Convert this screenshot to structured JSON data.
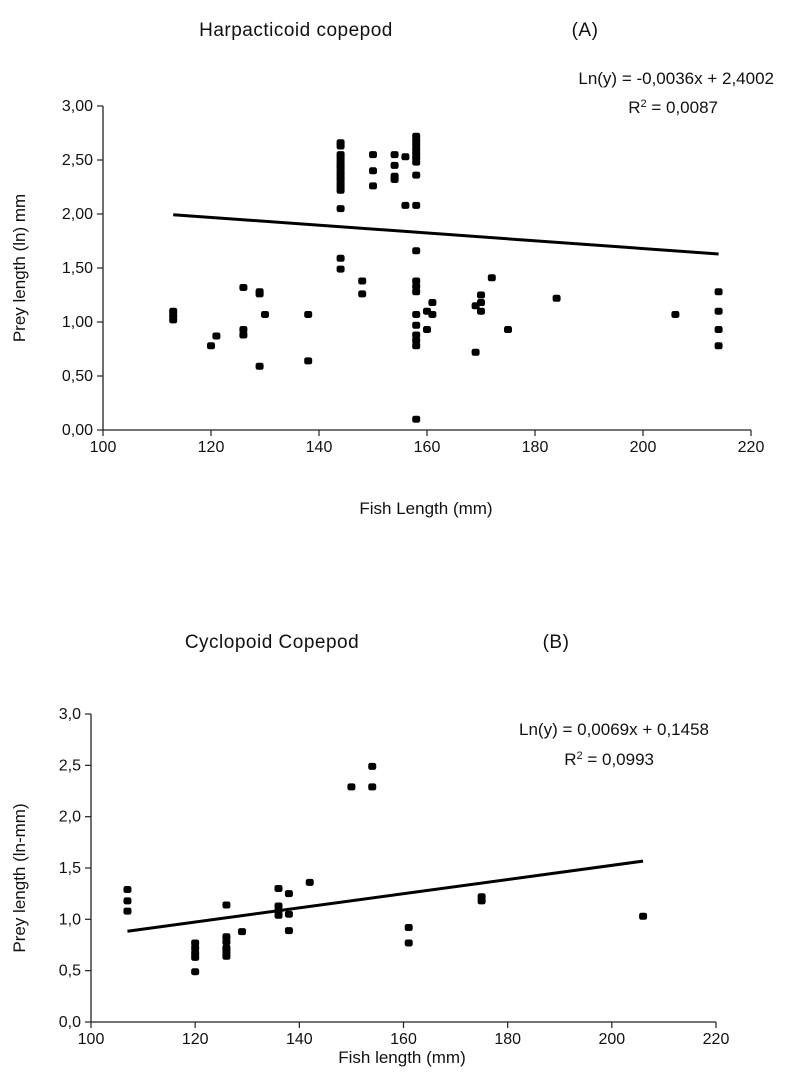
{
  "chart_data": [
    {
      "id": "A",
      "type": "scatter",
      "title": "Harpacticoid copepod",
      "panel_label": "(A)",
      "xlabel": "Fish Length (mm)",
      "ylabel": "Prey length (ln) mm",
      "xlim": [
        100,
        220
      ],
      "ylim": [
        0,
        3
      ],
      "x_ticks": [
        100,
        120,
        140,
        160,
        180,
        200,
        220
      ],
      "x_tick_labels": [
        "100",
        "120",
        "140",
        "160",
        "180",
        "200",
        "220"
      ],
      "y_ticks": [
        0,
        0.5,
        1,
        1.5,
        2,
        2.5,
        3
      ],
      "y_tick_labels": [
        "0,00",
        "0,50",
        "1,00",
        "1,50",
        "2,00",
        "2,50",
        "3,00"
      ],
      "equation": "Ln(y) = -0,0036x + 2,4002",
      "r2_prefix": "R",
      "r2_value": " = 0,0087",
      "trendline": {
        "slope": -0.0036,
        "intercept": 2.4002,
        "x_range": [
          113,
          214
        ]
      },
      "grid": false,
      "points": [
        [
          113,
          1.1
        ],
        [
          113,
          1.06
        ],
        [
          113,
          1.02
        ],
        [
          120,
          0.78
        ],
        [
          121,
          0.87
        ],
        [
          126,
          1.32
        ],
        [
          126,
          0.93
        ],
        [
          126,
          0.88
        ],
        [
          129,
          1.28
        ],
        [
          129,
          1.26
        ],
        [
          129,
          0.59
        ],
        [
          130,
          1.07
        ],
        [
          138,
          1.07
        ],
        [
          138,
          0.64
        ],
        [
          144,
          2.66
        ],
        [
          144,
          2.63
        ],
        [
          144,
          2.55
        ],
        [
          144,
          2.52
        ],
        [
          144,
          2.48
        ],
        [
          144,
          2.45
        ],
        [
          144,
          2.42
        ],
        [
          144,
          2.38
        ],
        [
          144,
          2.35
        ],
        [
          144,
          2.32
        ],
        [
          144,
          2.28
        ],
        [
          144,
          2.25
        ],
        [
          144,
          2.22
        ],
        [
          144,
          2.05
        ],
        [
          144,
          1.59
        ],
        [
          144,
          1.49
        ],
        [
          148,
          1.38
        ],
        [
          148,
          1.26
        ],
        [
          150,
          2.55
        ],
        [
          150,
          2.4
        ],
        [
          150,
          2.26
        ],
        [
          154,
          2.55
        ],
        [
          154,
          2.45
        ],
        [
          154,
          2.35
        ],
        [
          154,
          2.32
        ],
        [
          156,
          2.53
        ],
        [
          156,
          2.08
        ],
        [
          158,
          2.72
        ],
        [
          158,
          2.68
        ],
        [
          158,
          2.64
        ],
        [
          158,
          2.6
        ],
        [
          158,
          2.56
        ],
        [
          158,
          2.52
        ],
        [
          158,
          2.48
        ],
        [
          158,
          2.36
        ],
        [
          158,
          2.08
        ],
        [
          158,
          1.66
        ],
        [
          158,
          1.38
        ],
        [
          158,
          1.33
        ],
        [
          158,
          1.28
        ],
        [
          158,
          1.07
        ],
        [
          158,
          0.97
        ],
        [
          158,
          0.88
        ],
        [
          158,
          0.83
        ],
        [
          158,
          0.78
        ],
        [
          158,
          0.1
        ],
        [
          160,
          1.1
        ],
        [
          160,
          0.93
        ],
        [
          161,
          1.18
        ],
        [
          161,
          1.07
        ],
        [
          169,
          1.15
        ],
        [
          169,
          0.72
        ],
        [
          170,
          1.25
        ],
        [
          170,
          1.18
        ],
        [
          170,
          1.1
        ],
        [
          172,
          1.41
        ],
        [
          175,
          0.93
        ],
        [
          184,
          1.22
        ],
        [
          206,
          1.07
        ],
        [
          214,
          1.28
        ],
        [
          214,
          1.1
        ],
        [
          214,
          0.93
        ],
        [
          214,
          0.78
        ]
      ]
    },
    {
      "id": "B",
      "type": "scatter",
      "title": "Cyclopoid Copepod",
      "panel_label": "(B)",
      "xlabel": "Fish length (mm)",
      "ylabel": "Prey length  (ln-mm)",
      "xlim": [
        100,
        220
      ],
      "ylim": [
        0,
        3
      ],
      "x_ticks": [
        100,
        120,
        140,
        160,
        180,
        200,
        220
      ],
      "x_tick_labels": [
        "100",
        "120",
        "140",
        "160",
        "180",
        "200",
        "220"
      ],
      "y_ticks": [
        0,
        0.5,
        1,
        1.5,
        2,
        2.5,
        3
      ],
      "y_tick_labels": [
        "0,0",
        "0,5",
        "1,0",
        "1,5",
        "2,0",
        "2,5",
        "3,0"
      ],
      "equation": "Ln(y) = 0,0069x + 0,1458",
      "r2_prefix": "R",
      "r2_value": " = 0,0993",
      "trendline": {
        "slope": 0.0069,
        "intercept": 0.1458,
        "x_range": [
          107,
          206
        ]
      },
      "grid": false,
      "points": [
        [
          107,
          1.29
        ],
        [
          107,
          1.18
        ],
        [
          107,
          1.08
        ],
        [
          120,
          0.77
        ],
        [
          120,
          0.72
        ],
        [
          120,
          0.67
        ],
        [
          120,
          0.63
        ],
        [
          120,
          0.49
        ],
        [
          126,
          1.14
        ],
        [
          126,
          0.83
        ],
        [
          126,
          0.78
        ],
        [
          126,
          0.72
        ],
        [
          126,
          0.68
        ],
        [
          126,
          0.64
        ],
        [
          129,
          0.88
        ],
        [
          136,
          1.3
        ],
        [
          136,
          1.13
        ],
        [
          136,
          1.08
        ],
        [
          136,
          1.04
        ],
        [
          138,
          1.25
        ],
        [
          138,
          1.05
        ],
        [
          138,
          0.89
        ],
        [
          142,
          1.36
        ],
        [
          150,
          2.29
        ],
        [
          154,
          2.49
        ],
        [
          154,
          2.29
        ],
        [
          161,
          0.92
        ],
        [
          161,
          0.77
        ],
        [
          175,
          1.22
        ],
        [
          175,
          1.18
        ],
        [
          206,
          1.03
        ]
      ]
    }
  ]
}
